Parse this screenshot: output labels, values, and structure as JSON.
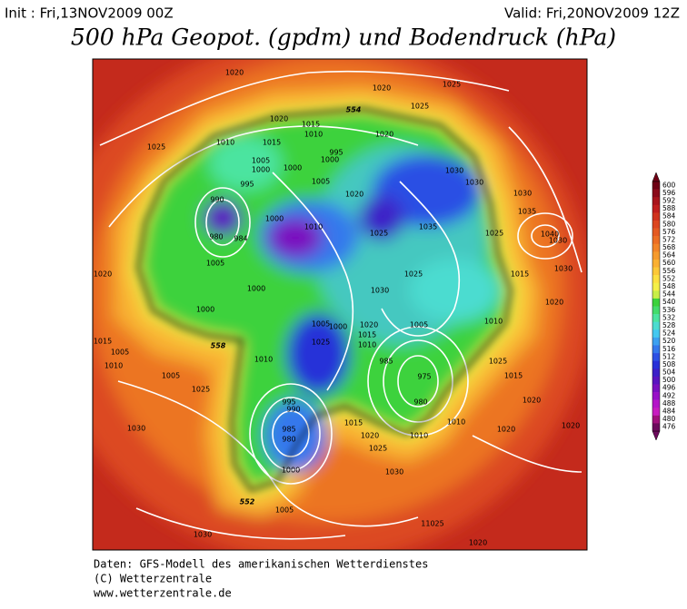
{
  "header": {
    "init": "Init : Fri,13NOV2009 00Z",
    "valid": "Valid: Fri,20NOV2009 12Z",
    "title": "500 hPa Geopot. (gpdm) und Bodendruck (hPa)"
  },
  "footer": [
    "Daten: GFS-Modell des amerikanischen Wetterdienstes",
    "(C) Wetterzentrale",
    "www.wetterzentrale.de"
  ],
  "colorbar": {
    "values": [
      600,
      596,
      592,
      588,
      584,
      580,
      576,
      572,
      568,
      564,
      560,
      556,
      552,
      548,
      544,
      540,
      536,
      532,
      528,
      524,
      520,
      516,
      512,
      508,
      504,
      500,
      496,
      492,
      488,
      484,
      480,
      476
    ],
    "colors": [
      "#6e0014",
      "#8a0a1a",
      "#a8141c",
      "#c01e1e",
      "#d0321e",
      "#dc4620",
      "#e45a22",
      "#ec6e24",
      "#f28428",
      "#f69a2c",
      "#fab032",
      "#fcc838",
      "#fce040",
      "#f4f048",
      "#c8ee48",
      "#3cd23c",
      "#44dc6c",
      "#4ce4a0",
      "#4cdcd0",
      "#44c8f0",
      "#3ca0f0",
      "#3478ec",
      "#2c50e4",
      "#2830d8",
      "#3c20c8",
      "#5a14c0",
      "#7a10c0",
      "#9810c8",
      "#b414c8",
      "#c81cc0",
      "#a0107c",
      "#6c0a5c"
    ]
  },
  "map": {
    "labels": [
      "1020",
      "1020",
      "1025",
      "1025",
      "554",
      "1020",
      "1015",
      "1010",
      "1015",
      "1010",
      "1025",
      "1020",
      "995",
      "1000",
      "1005",
      "1000",
      "1000",
      "995",
      "1005",
      "1020",
      "1030",
      "1030",
      "990",
      "980",
      "984",
      "1000",
      "1010",
      "1035",
      "1025",
      "1030",
      "1035",
      "1025",
      "1030",
      "1040",
      "1005",
      "1000",
      "1000",
      "1025",
      "1015",
      "1030",
      "1020",
      "1030",
      "1020",
      "1010",
      "558",
      "1005",
      "1010",
      "1005",
      "1025",
      "1005",
      "1000",
      "1025",
      "1020",
      "1015",
      "1010",
      "1005",
      "985",
      "975",
      "980",
      "1010",
      "995",
      "990",
      "985",
      "980",
      "1000",
      "1015",
      "1020",
      "1025",
      "1010",
      "1010",
      "1020",
      "1020",
      "1020",
      "1015",
      "1025",
      "552",
      "1005",
      "1030",
      "1015",
      "1030",
      "11025",
      "1020",
      "1030"
    ]
  }
}
